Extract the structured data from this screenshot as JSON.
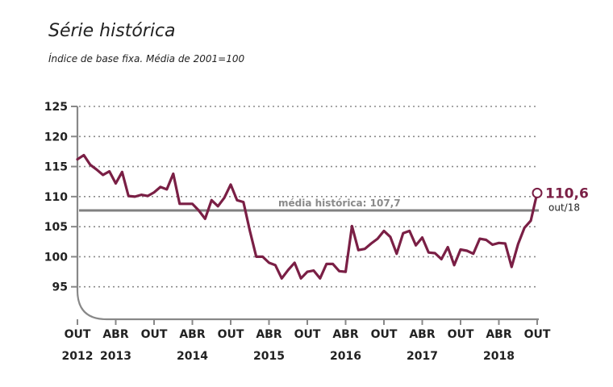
{
  "title": "Série histórica",
  "subtitle": "Índice de base fixa. Média de 2001=100",
  "chart_data": {
    "type": "line",
    "ylim": [
      90,
      125
    ],
    "yticks": [
      95,
      100,
      105,
      110,
      115,
      120,
      125
    ],
    "grid": true,
    "x_ticks": [
      {
        "month": 0,
        "label": "OUT",
        "year": "2012"
      },
      {
        "month": 6,
        "label": "ABR",
        "year": "2013"
      },
      {
        "month": 12,
        "label": "OUT",
        "year": ""
      },
      {
        "month": 18,
        "label": "ABR",
        "year": "2014"
      },
      {
        "month": 24,
        "label": "OUT",
        "year": ""
      },
      {
        "month": 30,
        "label": "ABR",
        "year": "2015"
      },
      {
        "month": 36,
        "label": "OUT",
        "year": ""
      },
      {
        "month": 42,
        "label": "ABR",
        "year": "2016"
      },
      {
        "month": 48,
        "label": "OUT",
        "year": ""
      },
      {
        "month": 54,
        "label": "ABR",
        "year": "2017"
      },
      {
        "month": 60,
        "label": "OUT",
        "year": ""
      },
      {
        "month": 66,
        "label": "ABR",
        "year": "2018"
      },
      {
        "month": 72,
        "label": "OUT",
        "year": ""
      }
    ],
    "reference_line": {
      "value": 107.7,
      "label": "média histórica: 107,7"
    },
    "series": [
      {
        "color": "#7a1f45",
        "values": [
          116.2,
          116.9,
          115.3,
          114.5,
          113.6,
          114.2,
          112.2,
          114.1,
          110.1,
          110.0,
          110.3,
          110.1,
          110.7,
          111.6,
          111.2,
          113.8,
          108.8,
          108.8,
          108.8,
          107.7,
          106.3,
          109.4,
          108.4,
          109.8,
          112.0,
          109.4,
          109.1,
          104.3,
          100.0,
          100.0,
          99.0,
          98.6,
          96.4,
          97.8,
          99.0,
          96.4,
          97.5,
          97.7,
          96.4,
          98.8,
          98.8,
          97.6,
          97.5,
          105.1,
          101.1,
          101.3,
          102.2,
          103.0,
          104.3,
          103.3,
          100.5,
          103.9,
          104.3,
          101.9,
          103.2,
          100.7,
          100.6,
          99.6,
          101.6,
          98.6,
          101.2,
          101.0,
          100.5,
          103.0,
          102.8,
          102.0,
          102.3,
          102.2,
          98.3,
          102.1,
          104.8,
          106.0,
          110.6
        ]
      }
    ],
    "last_point": {
      "value": "110,6",
      "date": "out/18"
    }
  }
}
